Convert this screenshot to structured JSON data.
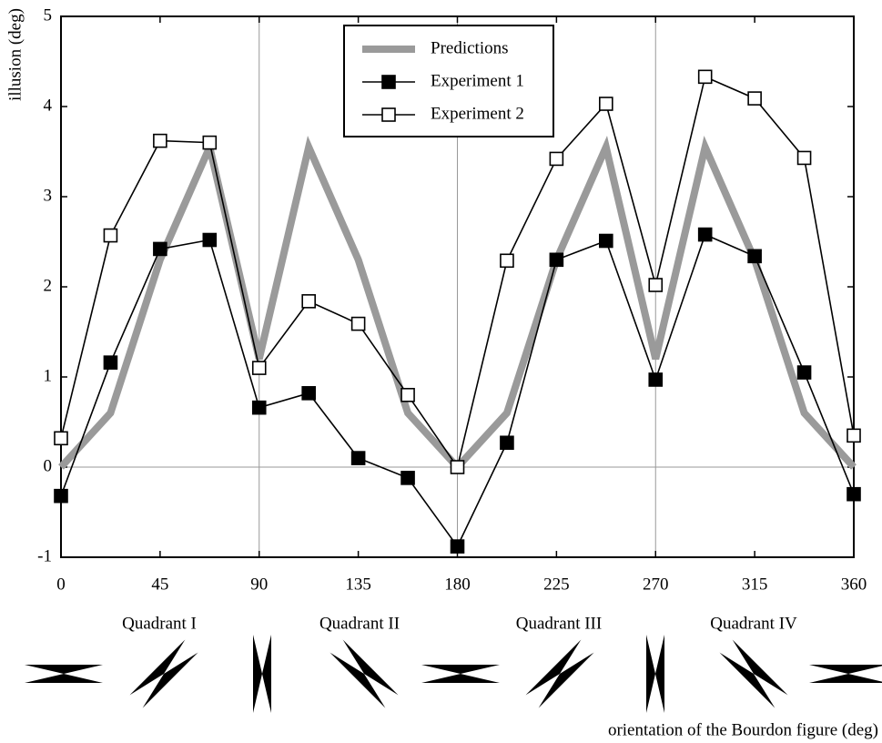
{
  "chart_data": {
    "type": "line",
    "y_label": "illusion (deg)",
    "x_label": "orientation of the Bourdon figure (deg)",
    "annotations": [
      "Quadrant I",
      "Quadrant II",
      "Quadrant III",
      "Quadrant IV"
    ],
    "x": [
      0,
      22.5,
      45,
      67.5,
      90,
      112.5,
      135,
      157.5,
      180,
      202.5,
      225,
      247.5,
      270,
      292.5,
      315,
      337.5,
      360
    ],
    "series": [
      {
        "name": "Predictions",
        "color": "#9a9a9a",
        "marker": "none",
        "values": [
          0,
          0.6,
          2.3,
          3.55,
          1.2,
          3.55,
          2.3,
          0.6,
          0,
          0.6,
          2.3,
          3.55,
          1.2,
          3.55,
          2.3,
          0.6,
          0
        ]
      },
      {
        "name": "Experiment 1",
        "color": "#000000",
        "marker": "filled",
        "values": [
          -0.32,
          1.16,
          2.42,
          2.52,
          0.66,
          0.82,
          0.1,
          -0.12,
          -0.88,
          0.27,
          2.3,
          2.51,
          0.97,
          2.58,
          2.34,
          1.05,
          -0.3
        ]
      },
      {
        "name": "Experiment 2",
        "color": "#000000",
        "marker": "open",
        "values": [
          0.32,
          2.57,
          3.62,
          3.6,
          1.1,
          1.84,
          1.59,
          0.8,
          0,
          2.29,
          3.42,
          4.03,
          2.02,
          4.33,
          4.09,
          3.43,
          0.35
        ]
      }
    ],
    "xlim": [
      0,
      360
    ],
    "xticks": [
      0,
      45,
      90,
      135,
      180,
      225,
      270,
      315,
      360
    ],
    "ylim": [
      -1,
      5
    ],
    "yticks": [
      -1,
      0,
      1,
      2,
      3,
      4,
      5
    ],
    "grid_x": [
      90,
      180,
      270
    ],
    "grid_y": [
      0
    ],
    "legend": "top"
  }
}
